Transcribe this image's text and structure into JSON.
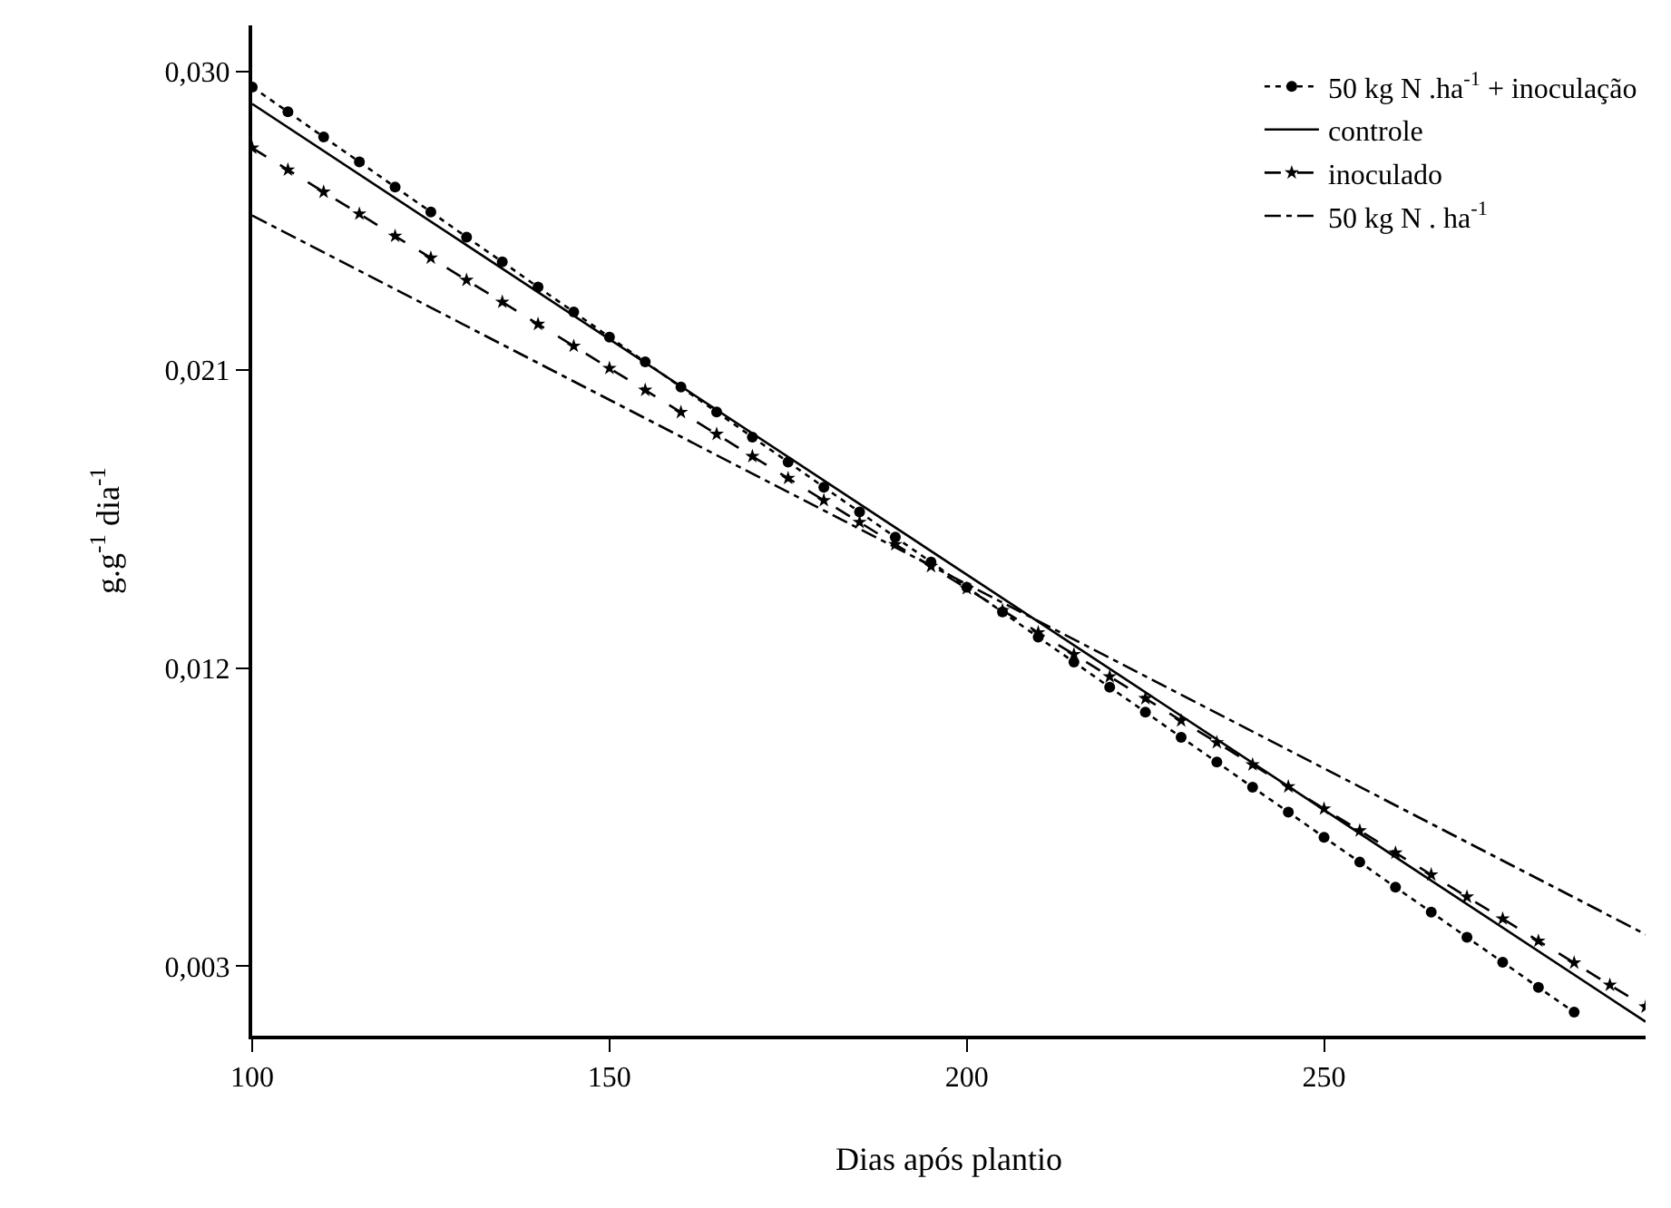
{
  "chart_data": {
    "type": "line",
    "xlabel": "Dias após plantio",
    "ylabel": "g.g$^{-1}$ dia$^{-1}$",
    "xlim": [
      100,
      295
    ],
    "xticks": [
      100,
      150,
      200,
      250
    ],
    "ylim": [
      0.0009,
      0.0314
    ],
    "yticks": [
      {
        "value": 0.003,
        "label": "0,003"
      },
      {
        "value": 0.012,
        "label": "0,012"
      },
      {
        "value": 0.021,
        "label": "0,021"
      },
      {
        "value": 0.03,
        "label": "0,030"
      }
    ],
    "grid": false,
    "legend": "top right",
    "series": [
      {
        "name": "50 kg N .ha$^{-1}$ + inoculação",
        "color": "#000000",
        "marker": "circle",
        "line_style": "dotted",
        "x": [
          100,
          105,
          110,
          115,
          120,
          125,
          130,
          135,
          140,
          145,
          150,
          155,
          160,
          165,
          170,
          175,
          180,
          185,
          190,
          195,
          200,
          205,
          210,
          215,
          220,
          225,
          230,
          235,
          240,
          245,
          250,
          255,
          260,
          265,
          270,
          275,
          280,
          285
        ],
        "values": [
          0.02954,
          0.02879,
          0.02803,
          0.02728,
          0.02652,
          0.02577,
          0.02501,
          0.02426,
          0.0235,
          0.02275,
          0.02199,
          0.02124,
          0.02048,
          0.01973,
          0.01897,
          0.01822,
          0.01746,
          0.01671,
          0.01595,
          0.0152,
          0.01444,
          0.01369,
          0.01293,
          0.01218,
          0.01142,
          0.01067,
          0.00991,
          0.00916,
          0.0084,
          0.00765,
          0.00689,
          0.00614,
          0.00538,
          0.00463,
          0.00387,
          0.00312,
          0.00236,
          0.00161
        ]
      },
      {
        "name": "controle",
        "color": "#000000",
        "marker": "none",
        "line_style": "solid",
        "x": [
          100,
          295
        ],
        "values": [
          0.02903,
          0.00132
        ]
      },
      {
        "name": "inoculado",
        "color": "#000000",
        "marker": "star",
        "line_style": "dashed",
        "x": [
          100,
          105,
          110,
          115,
          120,
          125,
          130,
          135,
          140,
          145,
          150,
          155,
          160,
          165,
          170,
          175,
          180,
          185,
          190,
          195,
          200,
          205,
          210,
          215,
          220,
          225,
          230,
          235,
          240,
          245,
          250,
          255,
          260,
          265,
          270,
          275,
          280,
          285,
          290,
          295
        ],
        "values": [
          0.0277,
          0.02704,
          0.02637,
          0.02571,
          0.02504,
          0.02438,
          0.02371,
          0.02305,
          0.02238,
          0.02172,
          0.02105,
          0.02039,
          0.01972,
          0.01906,
          0.01839,
          0.01773,
          0.01706,
          0.0164,
          0.01573,
          0.01507,
          0.0144,
          0.01374,
          0.01307,
          0.01241,
          0.01174,
          0.01108,
          0.01041,
          0.00975,
          0.00908,
          0.00842,
          0.00775,
          0.00709,
          0.00642,
          0.00576,
          0.00509,
          0.00443,
          0.00376,
          0.0031,
          0.00243,
          0.00177
        ]
      },
      {
        "name": "50 kg N . ha$^{-1}$",
        "color": "#000000",
        "marker": "none",
        "line_style": "dashdot",
        "x": [
          100,
          295
        ],
        "values": [
          0.02566,
          0.00396
        ]
      }
    ]
  }
}
